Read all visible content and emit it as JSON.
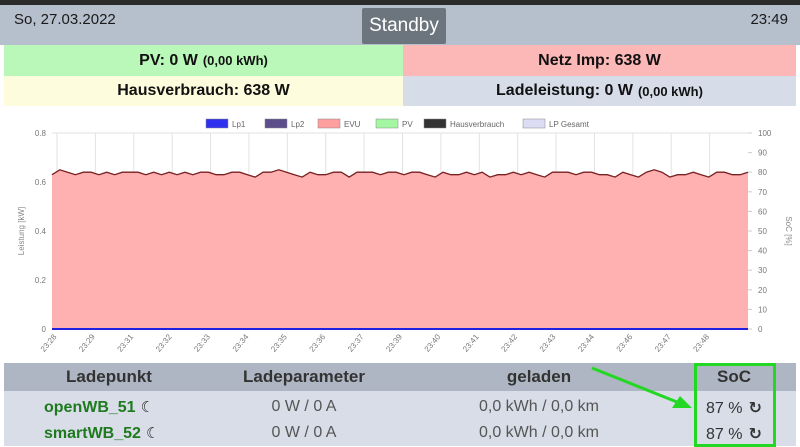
{
  "header": {
    "date": "So, 27.03.2022",
    "mode": "Standby",
    "time": "23:49"
  },
  "summary": {
    "pv_label": "PV: 0 W",
    "pv_energy": "(0,00 kWh)",
    "grid_label": "Netz Imp: 638 W",
    "house_label": "Hausverbrauch: 638 W",
    "charge_label": "Ladeleistung: 0 W",
    "charge_energy": "(0,00 kWh)"
  },
  "colors": {
    "pv_bg": "#b9f8b9",
    "grid_bg": "#fcb7b7",
    "house_bg": "#fdfcdd",
    "charge_bg": "#d6dde9",
    "evu_fill": "#ffb0b0",
    "house_line": "#7a2020",
    "lp1_line": "#2020e0"
  },
  "chart_data": {
    "type": "area",
    "legend": [
      {
        "name": "Lp1",
        "color": "#2f2ff0"
      },
      {
        "name": "Lp2",
        "color": "#5b4e8a"
      },
      {
        "name": "EVU",
        "color": "#ff9e9e"
      },
      {
        "name": "PV",
        "color": "#a3f7a3"
      },
      {
        "name": "Hausverbrauch",
        "color": "#333333"
      },
      {
        "name": "LP Gesamt",
        "color": "#dcdcf5"
      }
    ],
    "ylabel": "Leistung [kW]",
    "y2label": "SoC [%]",
    "ylim": [
      0,
      0.8
    ],
    "y2lim": [
      0,
      100
    ],
    "yticks": [
      "0",
      "0.2",
      "0.4",
      "0.6",
      "0.8"
    ],
    "y2ticks": [
      "0",
      "10",
      "20",
      "30",
      "40",
      "50",
      "60",
      "70",
      "80",
      "90",
      "100"
    ],
    "xticks": [
      "23:28",
      "23:29",
      "23:31",
      "23:32",
      "23:33",
      "23:34",
      "23:35",
      "23:36",
      "23:37",
      "23:39",
      "23:40",
      "23:41",
      "23:42",
      "23:43",
      "23:44",
      "23:46",
      "23:47",
      "23:48"
    ],
    "grid": true,
    "legend_position": "top",
    "series": [
      {
        "name": "EVU",
        "values": [
          0.63,
          0.65,
          0.64,
          0.63,
          0.64,
          0.64,
          0.63,
          0.64,
          0.63,
          0.64,
          0.64,
          0.64,
          0.63,
          0.64,
          0.63,
          0.64,
          0.63,
          0.64,
          0.63,
          0.64,
          0.64,
          0.63,
          0.63,
          0.64,
          0.64,
          0.63,
          0.62,
          0.64,
          0.64,
          0.65,
          0.64,
          0.63,
          0.62,
          0.64,
          0.63,
          0.63,
          0.64,
          0.64,
          0.62,
          0.64,
          0.64,
          0.64,
          0.63,
          0.64,
          0.64,
          0.63,
          0.64,
          0.64,
          0.63,
          0.62,
          0.64,
          0.63,
          0.63,
          0.64,
          0.63,
          0.64,
          0.62,
          0.63,
          0.63,
          0.64,
          0.63,
          0.64,
          0.63,
          0.62,
          0.64,
          0.64,
          0.64,
          0.63,
          0.64,
          0.64,
          0.63,
          0.63,
          0.62,
          0.64,
          0.63,
          0.62,
          0.64,
          0.65,
          0.64,
          0.62,
          0.63,
          0.63,
          0.64,
          0.63,
          0.62,
          0.64,
          0.64,
          0.63,
          0.63,
          0.64
        ]
      },
      {
        "name": "Hausverbrauch",
        "values": [
          0.63,
          0.65,
          0.64,
          0.63,
          0.64,
          0.64,
          0.63,
          0.64,
          0.63,
          0.64,
          0.64,
          0.64,
          0.63,
          0.64,
          0.63,
          0.64,
          0.63,
          0.64,
          0.63,
          0.64,
          0.64,
          0.63,
          0.63,
          0.64,
          0.64,
          0.63,
          0.62,
          0.64,
          0.64,
          0.65,
          0.64,
          0.63,
          0.62,
          0.64,
          0.63,
          0.63,
          0.64,
          0.64,
          0.62,
          0.64,
          0.64,
          0.64,
          0.63,
          0.64,
          0.64,
          0.63,
          0.64,
          0.64,
          0.63,
          0.62,
          0.64,
          0.63,
          0.63,
          0.64,
          0.63,
          0.64,
          0.62,
          0.63,
          0.63,
          0.64,
          0.63,
          0.64,
          0.63,
          0.62,
          0.64,
          0.64,
          0.64,
          0.63,
          0.64,
          0.64,
          0.63,
          0.63,
          0.62,
          0.64,
          0.63,
          0.62,
          0.64,
          0.65,
          0.64,
          0.62,
          0.63,
          0.63,
          0.64,
          0.63,
          0.62,
          0.64,
          0.64,
          0.63,
          0.63,
          0.64
        ]
      },
      {
        "name": "Lp1",
        "values": [
          0,
          0
        ]
      }
    ]
  },
  "table": {
    "headers": [
      "Ladepunkt",
      "Ladeparameter",
      "geladen",
      "SoC"
    ],
    "rows": [
      {
        "name": "openWB_51",
        "moon": "☾",
        "params": "0 W / 0 A",
        "charged": "0,0 kWh / 0,0 km",
        "soc": "87 %",
        "refresh": "↻"
      },
      {
        "name": "smartWB_52",
        "moon": "☾",
        "params": "0 W / 0 A",
        "charged": "0,0 kWh / 0,0 km",
        "soc": "87 %",
        "refresh": "↻"
      }
    ]
  }
}
